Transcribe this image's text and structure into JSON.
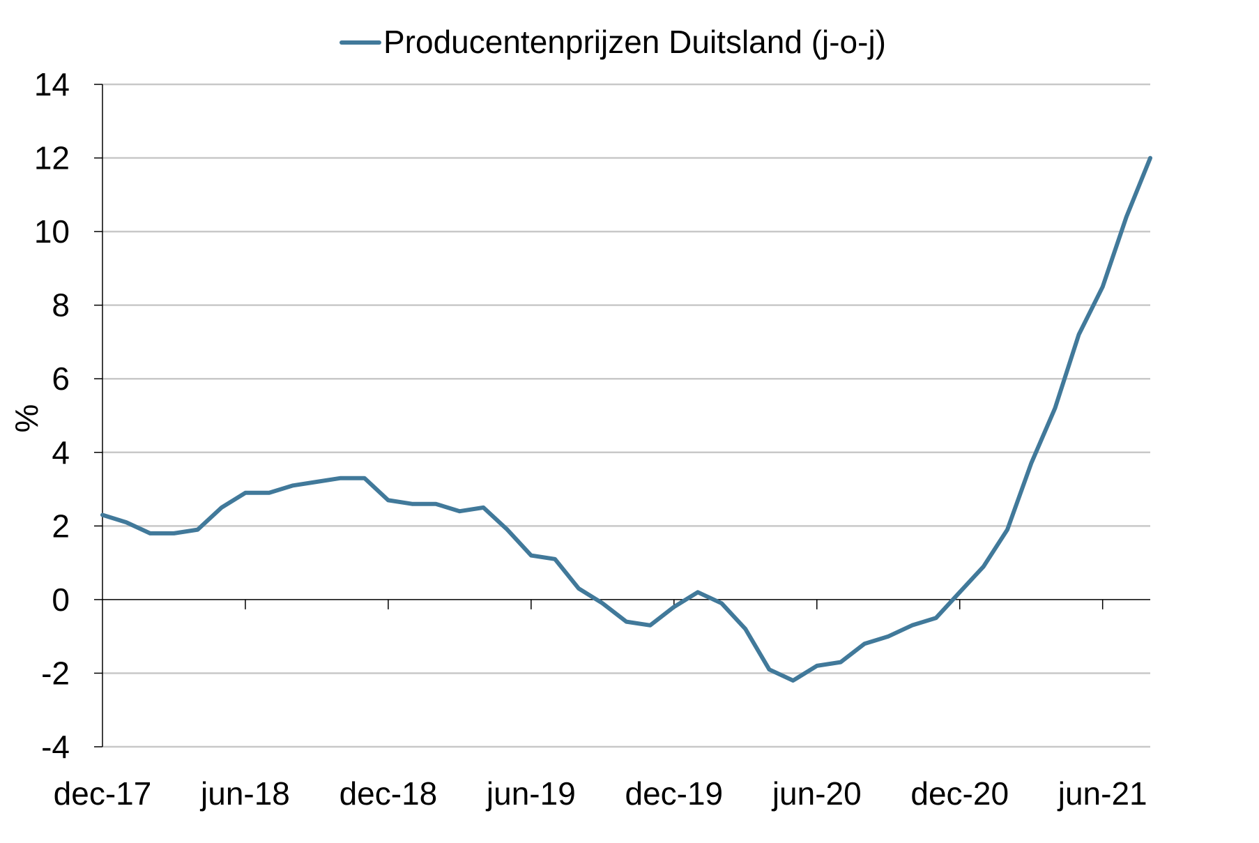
{
  "chart_data": {
    "type": "line",
    "title": "",
    "xlabel": "",
    "ylabel": "%",
    "ylim": [
      -4,
      14
    ],
    "yticks": [
      -4,
      -2,
      0,
      2,
      4,
      6,
      8,
      10,
      12,
      14
    ],
    "ytick_labels": [
      "-4",
      "-2",
      "0",
      "2",
      "4",
      "6",
      "8",
      "10",
      "12",
      "14"
    ],
    "xtick_labels": [
      "dec-17",
      "jun-18",
      "dec-18",
      "jun-19",
      "dec-19",
      "jun-20",
      "dec-20",
      "jun-21"
    ],
    "grid": true,
    "legend": "top-center",
    "series": [
      {
        "name": "Producentenprijzen Duitsland (j-o-j)",
        "color": "#41799a",
        "x": [
          "dec-17",
          "jan-18",
          "feb-18",
          "mrt-18",
          "apr-18",
          "mei-18",
          "jun-18",
          "jul-18",
          "aug-18",
          "sep-18",
          "okt-18",
          "nov-18",
          "dec-18",
          "jan-19",
          "feb-19",
          "mrt-19",
          "apr-19",
          "mei-19",
          "jun-19",
          "jul-19",
          "aug-19",
          "sep-19",
          "okt-19",
          "nov-19",
          "dec-19",
          "jan-20",
          "feb-20",
          "mrt-20",
          "apr-20",
          "mei-20",
          "jun-20",
          "jul-20",
          "aug-20",
          "sep-20",
          "okt-20",
          "nov-20",
          "dec-20",
          "jan-21",
          "feb-21",
          "mrt-21",
          "apr-21",
          "mei-21",
          "jun-21",
          "jul-21",
          "aug-21"
        ],
        "values": [
          2.3,
          2.1,
          1.8,
          1.8,
          1.9,
          2.5,
          2.9,
          2.9,
          3.1,
          3.2,
          3.3,
          3.3,
          2.7,
          2.6,
          2.6,
          2.4,
          2.5,
          1.9,
          1.2,
          1.1,
          0.3,
          -0.1,
          -0.6,
          -0.7,
          -0.2,
          0.2,
          -0.1,
          -0.8,
          -1.9,
          -2.2,
          -1.8,
          -1.7,
          -1.2,
          -1.0,
          -0.7,
          -0.5,
          0.2,
          0.9,
          1.9,
          3.7,
          5.2,
          7.2,
          8.5,
          10.4,
          12.0
        ]
      }
    ]
  }
}
